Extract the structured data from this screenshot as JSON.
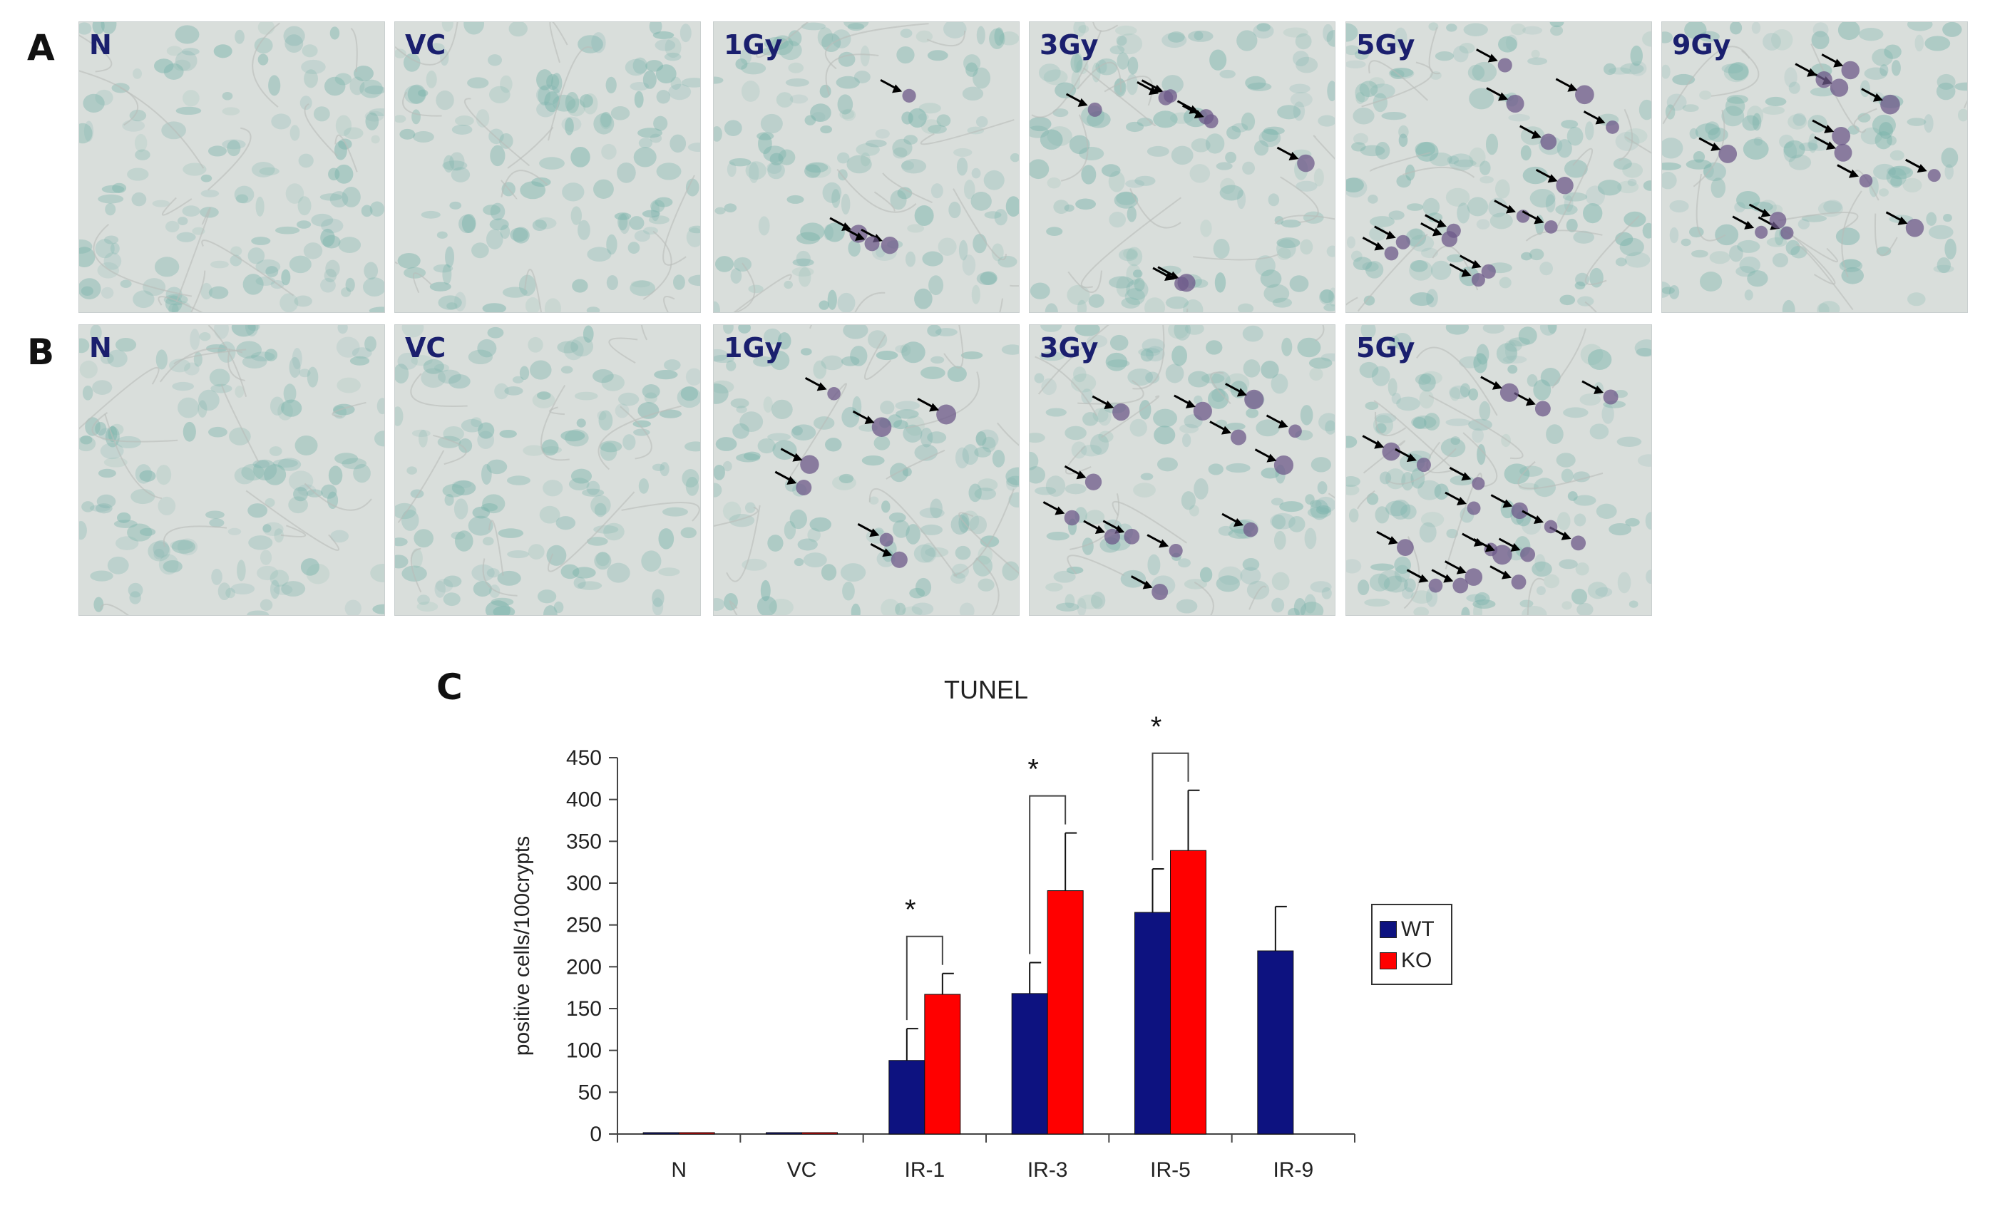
{
  "panels": {
    "a_label": "A",
    "b_label": "B",
    "c_label": "C"
  },
  "row_a": [
    "N",
    "VC",
    "1Gy",
    "3Gy",
    "5Gy",
    "9Gy"
  ],
  "row_b": [
    "N",
    "VC",
    "1Gy",
    "3Gy",
    "5Gy"
  ],
  "colors": {
    "wt": "#0d1280",
    "ko": "#ff0000",
    "axis": "#444444",
    "tissue": "#d9dedb",
    "stain": "#7ab3ab",
    "nucleus": "#6e5a8a"
  },
  "chart_data": {
    "type": "bar",
    "title": "TUNEL",
    "ylabel": "positive cells/100crypts",
    "xlabel": "",
    "categories": [
      "N",
      "VC",
      "IR-1",
      "IR-3",
      "IR-5",
      "IR-9"
    ],
    "ylim": [
      0,
      450
    ],
    "yticks": [
      0,
      50,
      100,
      150,
      200,
      250,
      300,
      350,
      400,
      450
    ],
    "series": [
      {
        "name": "WT",
        "values": [
          0,
          0,
          88,
          168,
          265,
          219
        ],
        "errors": [
          0,
          0,
          38,
          37,
          52,
          53
        ]
      },
      {
        "name": "KO",
        "values": [
          0,
          0,
          167,
          291,
          339,
          null
        ],
        "errors": [
          0,
          0,
          25,
          69,
          72,
          null
        ]
      }
    ],
    "significance": [
      {
        "category": "IR-1",
        "label": "*"
      },
      {
        "category": "IR-3",
        "label": "*"
      },
      {
        "category": "IR-5",
        "label": "*"
      }
    ],
    "legend": "right",
    "grid": false
  }
}
